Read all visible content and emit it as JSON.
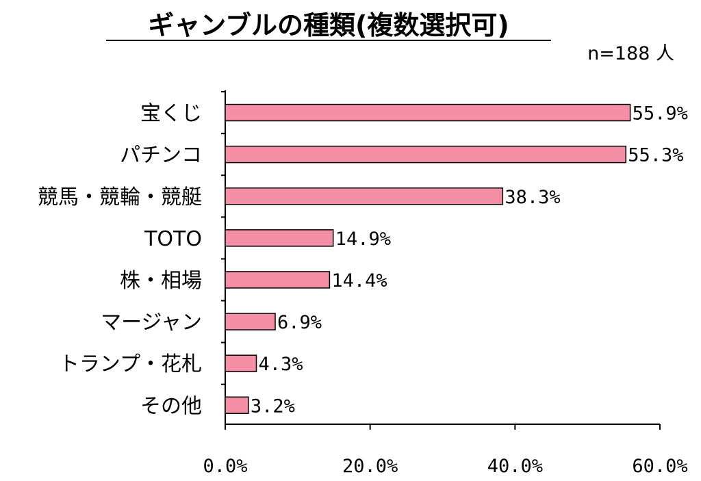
{
  "chart_data": {
    "type": "bar",
    "orientation": "horizontal",
    "title": "ギャンブルの種類(複数選択可)",
    "note": "n=188 人",
    "categories": [
      "宝くじ",
      "パチンコ",
      "競馬・競輪・競艇",
      "TOTO",
      "株・相場",
      "マージャン",
      "トランプ・花札",
      "その他"
    ],
    "values": [
      55.9,
      55.3,
      38.3,
      14.9,
      14.4,
      6.9,
      4.3,
      3.2
    ],
    "data_labels": [
      "55.9%",
      "55.3%",
      "38.3%",
      "14.9%",
      "14.4%",
      "6.9%",
      "4.3%",
      "3.2%"
    ],
    "xlim": [
      0,
      60
    ],
    "x_ticks": [
      0,
      20,
      40,
      60
    ],
    "x_tick_labels": [
      "0.0%",
      "20.0%",
      "40.0%",
      "60.0%"
    ],
    "grid": false,
    "legend": "none",
    "bar_color": "#F48FA6",
    "bar_edge_color": "#000000"
  }
}
